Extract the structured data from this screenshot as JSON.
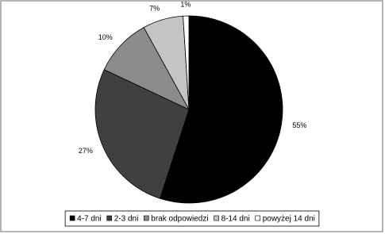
{
  "chart_data": {
    "type": "pie",
    "categories": [
      "4-7 dni",
      "2-3 dni",
      "brak odpowiedzi",
      "8-14 dni",
      "powyżej 14 dni"
    ],
    "values": [
      55,
      27,
      10,
      7,
      1
    ],
    "value_labels": [
      "55%",
      "27%",
      "10%",
      "7%",
      "1%"
    ],
    "colors": [
      "#000000",
      "#404040",
      "#8c8c8c",
      "#c4c4c4",
      "#ffffff"
    ],
    "legend": "bottom"
  }
}
